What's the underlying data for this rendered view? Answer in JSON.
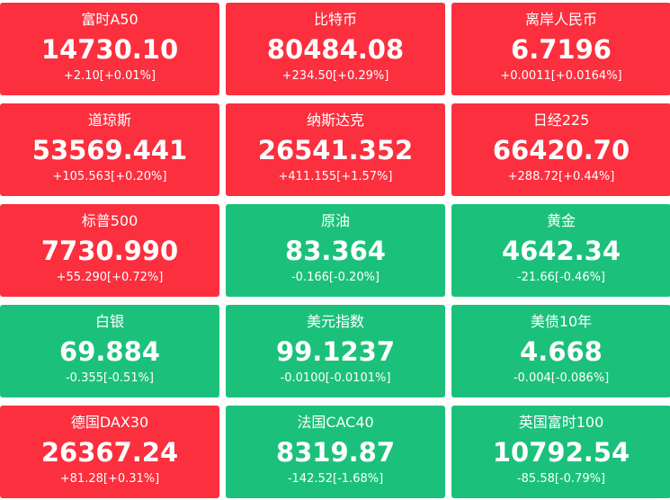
{
  "tiles": [
    {
      "name": "富时A50",
      "price": "14730.10",
      "change": "+2.10[+0.01%]",
      "color": "#fb2f3e"
    },
    {
      "name": "比特币",
      "price": "80484.08",
      "change": "+234.50[+0.29%]",
      "color": "#fb2f3e"
    },
    {
      "name": "离岸人民币",
      "price": "6.7196",
      "change": "+0.0011[+0.0164%]",
      "color": "#fb2f3e"
    },
    {
      "name": "道琼斯",
      "price": "53569.441",
      "change": "+105.563[+0.20%]",
      "color": "#fb2f3e"
    },
    {
      "name": "纳斯达克",
      "price": "26541.352",
      "change": "+411.155[+1.57%]",
      "color": "#fb2f3e"
    },
    {
      "name": "日经225",
      "price": "66420.70",
      "change": "+288.72[+0.44%]",
      "color": "#fb2f3e"
    },
    {
      "name": "标普500",
      "price": "7730.990",
      "change": "+55.290[+0.72%]",
      "color": "#fb2f3e"
    },
    {
      "name": "原油",
      "price": "83.364",
      "change": "-0.166[-0.20%]",
      "color": "#1bc17b"
    },
    {
      "name": "黄金",
      "price": "4642.34",
      "change": "-21.66[-0.46%]",
      "color": "#1bc17b"
    },
    {
      "name": "白银",
      "price": "69.884",
      "change": "-0.355[-0.51%]",
      "color": "#1bc17b"
    },
    {
      "name": "美元指数",
      "price": "99.1237",
      "change": "-0.0100[-0.0101%]",
      "color": "#1bc17b"
    },
    {
      "name": "美债10年",
      "price": "4.668",
      "change": "-0.004[-0.086%]",
      "color": "#1bc17b"
    },
    {
      "name": "德国DAX30",
      "price": "26367.24",
      "change": "+81.28[+0.31%]",
      "color": "#fb2f3e"
    },
    {
      "name": "法国CAC40",
      "price": "8319.87",
      "change": "-142.52[-1.68%]",
      "color": "#1bc17b"
    },
    {
      "name": "英国富时100",
      "price": "10792.54",
      "change": "-85.58[-0.79%]",
      "color": "#1bc17b"
    }
  ]
}
